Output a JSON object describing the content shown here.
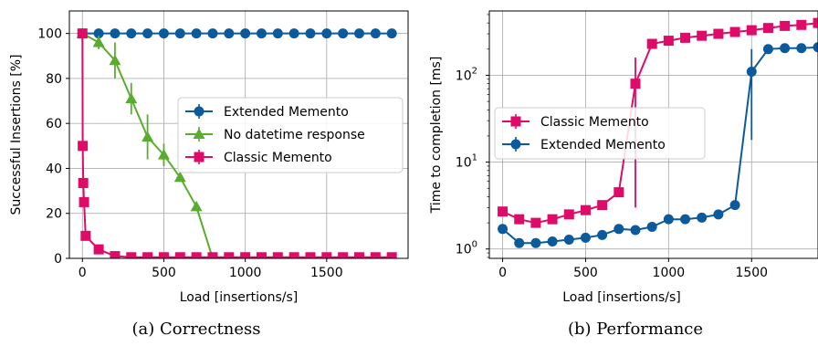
{
  "captions": {
    "a": "(a) Correctness",
    "b": "(b) Performance"
  },
  "chart_data": [
    {
      "type": "line",
      "xlabel": "Load [insertions/s]",
      "ylabel": "Successful Insertions [%]",
      "xlim": [
        -80,
        2000
      ],
      "ylim": [
        0,
        110
      ],
      "xticks": [
        0,
        500,
        1000,
        1500
      ],
      "yticks": [
        0,
        20,
        40,
        60,
        80,
        100
      ],
      "grid": true,
      "legend_position": "right",
      "series": [
        {
          "name": "Extended Memento",
          "color": "#0b5a9c",
          "marker": "circle",
          "x": [
            0,
            100,
            200,
            300,
            400,
            500,
            600,
            700,
            800,
            900,
            1000,
            1100,
            1200,
            1300,
            1400,
            1500,
            1600,
            1700,
            1800,
            1900
          ],
          "y": [
            100,
            100,
            100,
            100,
            100,
            100,
            100,
            100,
            100,
            100,
            100,
            100,
            100,
            100,
            100,
            100,
            100,
            100,
            100,
            100
          ]
        },
        {
          "name": "No datetime response",
          "color": "#5aac2e",
          "marker": "triangle",
          "x": [
            0,
            100,
            200,
            300,
            400,
            500,
            600,
            700,
            800
          ],
          "y": [
            100,
            96,
            88,
            71,
            54,
            46,
            36,
            23,
            0
          ],
          "yerr": [
            0,
            3,
            8,
            7,
            10,
            5,
            2,
            2,
            0
          ]
        },
        {
          "name": "Classic Memento",
          "color": "#de0b68",
          "marker": "square",
          "x": [
            0,
            2,
            5,
            10,
            20,
            100,
            200,
            300,
            400,
            500,
            600,
            700,
            800,
            900,
            1000,
            1100,
            1200,
            1300,
            1400,
            1500,
            1600,
            1700,
            1800,
            1900
          ],
          "y": [
            100,
            50,
            33.5,
            25,
            10,
            4,
            1,
            0.5,
            0.5,
            0.5,
            0.5,
            0.5,
            0.5,
            0.5,
            0.5,
            0.5,
            0.5,
            0.5,
            0.5,
            0.5,
            0.5,
            0.5,
            0.5,
            0.5
          ]
        }
      ]
    },
    {
      "type": "line",
      "xlabel": "Load [insertions/s]",
      "ylabel": "Time to completion [ms]",
      "xlim": [
        -80,
        1900
      ],
      "ylim": [
        0.78,
        550
      ],
      "yscale": "log",
      "xticks": [
        0,
        500,
        1000,
        1500
      ],
      "ytick_base": "10",
      "ytick_exponents": [
        "0",
        "1",
        "2"
      ],
      "grid": true,
      "legend_position": "upper-left",
      "series": [
        {
          "name": "Classic Memento",
          "color": "#de0b68",
          "marker": "square",
          "x": [
            0,
            100,
            200,
            300,
            400,
            500,
            600,
            700,
            800,
            900,
            1000,
            1100,
            1200,
            1300,
            1400,
            1500,
            1600,
            1700,
            1800,
            1900
          ],
          "y": [
            2.7,
            2.2,
            2.0,
            2.2,
            2.5,
            2.8,
            3.2,
            4.5,
            80,
            230,
            250,
            270,
            285,
            300,
            315,
            330,
            350,
            370,
            380,
            400
          ],
          "yerr_low": [
            0,
            0,
            0,
            0,
            0,
            0,
            0,
            0,
            77,
            0,
            0,
            0,
            0,
            0,
            0,
            0,
            0,
            0,
            0,
            0
          ],
          "yerr_high": [
            0,
            0,
            0,
            0,
            0,
            0,
            0,
            0,
            80,
            0,
            0,
            0,
            0,
            0,
            0,
            0,
            0,
            0,
            0,
            0
          ]
        },
        {
          "name": "Extended Memento",
          "color": "#0b5a9c",
          "marker": "circle",
          "x": [
            0,
            100,
            200,
            300,
            400,
            500,
            600,
            700,
            800,
            900,
            1000,
            1100,
            1200,
            1300,
            1400,
            1500,
            1600,
            1700,
            1800,
            1900
          ],
          "y": [
            1.7,
            1.17,
            1.17,
            1.22,
            1.28,
            1.35,
            1.45,
            1.7,
            1.65,
            1.8,
            2.2,
            2.2,
            2.3,
            2.5,
            3.2,
            110,
            200,
            205,
            205,
            210
          ],
          "yerr_low": [
            0,
            0,
            0,
            0,
            0,
            0,
            0,
            0,
            0,
            0,
            0,
            0,
            0,
            0,
            0,
            92,
            0,
            0,
            0,
            0
          ],
          "yerr_high": [
            0,
            0,
            0,
            0,
            0,
            0,
            0,
            0,
            0,
            0,
            0,
            0,
            0,
            0,
            0,
            90,
            0,
            0,
            0,
            0
          ]
        }
      ]
    }
  ]
}
